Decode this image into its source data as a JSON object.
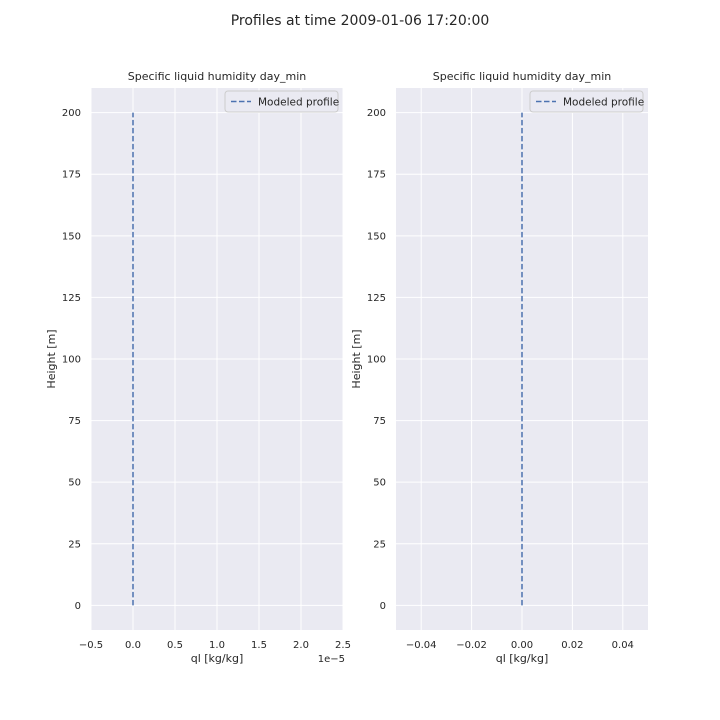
{
  "figure": {
    "title": "Profiles at time 2009-01-06 17:20:00"
  },
  "chart_data": [
    {
      "type": "line",
      "title": "Specific liquid humidity day_min",
      "xlabel": "ql [kg/kg]",
      "ylabel": "Height [m]",
      "x_offset_label": "1e−5",
      "xlim": [
        -0.5,
        2.5
      ],
      "ylim": [
        -10,
        210
      ],
      "xticks": [
        -0.5,
        0.0,
        0.5,
        1.0,
        1.5,
        2.0,
        2.5
      ],
      "xtick_labels": [
        "−0.5",
        "0.0",
        "0.5",
        "1.0",
        "1.5",
        "2.0",
        "2.5"
      ],
      "yticks": [
        0,
        25,
        50,
        75,
        100,
        125,
        150,
        175,
        200
      ],
      "ytick_labels": [
        "0",
        "25",
        "50",
        "75",
        "100",
        "125",
        "150",
        "175",
        "200"
      ],
      "grid": true,
      "legend_position": "top-right",
      "series": [
        {
          "name": "Modeled profile",
          "style": "dashed",
          "color": "#4c72b0",
          "x": [
            0.0,
            0.0
          ],
          "y": [
            0,
            200
          ]
        }
      ]
    },
    {
      "type": "line",
      "title": "Specific liquid humidity day_min",
      "xlabel": "ql [kg/kg]",
      "ylabel": "Height [m]",
      "xlim": [
        -0.05,
        0.05
      ],
      "ylim": [
        -10,
        210
      ],
      "xticks": [
        -0.04,
        -0.02,
        0.0,
        0.02,
        0.04
      ],
      "xtick_labels": [
        "−0.04",
        "−0.02",
        "0.00",
        "0.02",
        "0.04"
      ],
      "yticks": [
        0,
        25,
        50,
        75,
        100,
        125,
        150,
        175,
        200
      ],
      "ytick_labels": [
        "0",
        "25",
        "50",
        "75",
        "100",
        "125",
        "150",
        "175",
        "200"
      ],
      "grid": true,
      "legend_position": "top-right",
      "series": [
        {
          "name": "Modeled profile",
          "style": "dashed",
          "color": "#4c72b0",
          "x": [
            0.0,
            0.0
          ],
          "y": [
            0,
            200
          ]
        }
      ]
    }
  ]
}
